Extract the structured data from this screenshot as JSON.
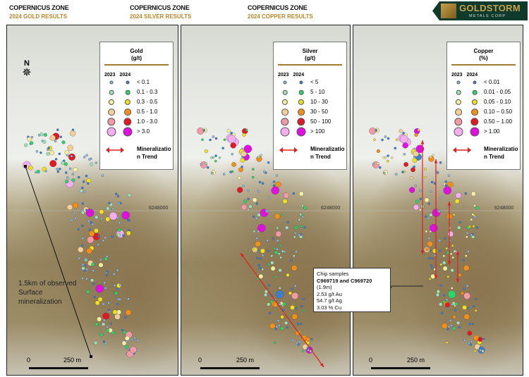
{
  "logo": {
    "name": "GOLDSTORM",
    "sub": "METALS CORP"
  },
  "panels": [
    {
      "zone": "COPERNICUS ZONE",
      "subtitle": "2024 GOLD RESULTS",
      "legend": {
        "title": "Gold",
        "unit": "(g/t)",
        "years": "2023 2024",
        "classes": [
          "< 0.1",
          "0.1 - 0.3",
          "0.3 - 0.5",
          "0.5 - 1.0",
          "1.0 - 3.0",
          "> 3.0"
        ],
        "trend": "Mineralization Trend"
      },
      "coord": "6248000",
      "scale_zero": "0",
      "scale_label": "250 m",
      "north": "N",
      "note": "1.5km of observed Surface mineralization"
    },
    {
      "zone": "COPERNICUS ZONE",
      "subtitle": "2024 SILVER RESULTS",
      "legend": {
        "title": "Silver",
        "unit": "(g/t)",
        "years": "2023 2024",
        "classes": [
          "< 5",
          "5 - 10",
          "10 - 30",
          "30 - 50",
          "50 - 100",
          "> 100"
        ],
        "trend": "Mineralization Trend"
      },
      "coord": "6248000",
      "scale_zero": "0",
      "scale_label": "250 m",
      "chip": {
        "title": "Chip samples",
        "ids": "C969719 and C969720",
        "width": "(1.9m)",
        "au": "2.53 g/t Au",
        "ag": "54.7 g/t Ag",
        "cu": "3.03 %  Cu"
      }
    },
    {
      "zone": "COPERNICUS ZONE",
      "subtitle": "2024 COPPER RESULTS",
      "legend": {
        "title": "Copper",
        "unit": "(%)",
        "years": "2023 2024",
        "classes": [
          "< 0.01",
          "0.01 - 0.05",
          "0.05 - 0.10",
          "0.10 – 0.50",
          "0.50 – 1.00",
          "> 1.00"
        ],
        "trend": "Mineralization Trend"
      },
      "coord": "6248000",
      "scale_zero": "0",
      "scale_label": "250 m"
    }
  ],
  "colors": {
    "c2023": [
      "#8fb8e0",
      "#9fe0b8",
      "#f4f0a0",
      "#f2cf96",
      "#f19aa6",
      "#f3aef0"
    ],
    "c2024": [
      "#3f7fd0",
      "#2fd36a",
      "#f0e020",
      "#f0901a",
      "#e01a22",
      "#e010e0"
    ],
    "trend": "#e02020",
    "accent": "#b8862b"
  }
}
